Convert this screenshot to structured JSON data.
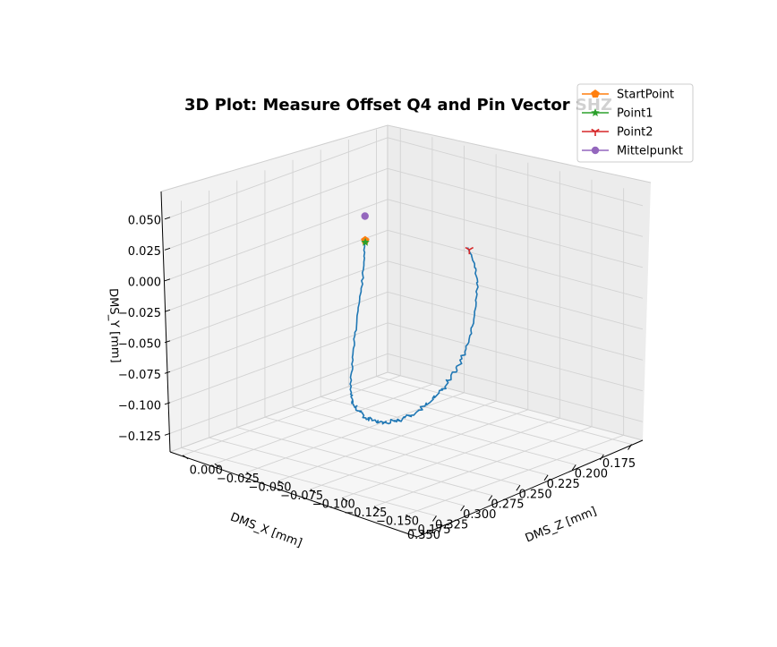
{
  "chart_data": {
    "type": "line",
    "projection": "3d",
    "title": "3D Plot: Measure Offset Q4 and Pin Vector SHZ",
    "xlabel": "DMS_X [mm]",
    "ylabel": "DMS_Y [mm]",
    "zlabel": "DMS_Z [mm]",
    "xlim": [
      0.165,
      0.36
    ],
    "ylim": [
      -0.14,
      0.06
    ],
    "zlim": [
      -0.19,
      0.01
    ],
    "x_ticks": [
      "0.175",
      "0.200",
      "0.225",
      "0.250",
      "0.275",
      "0.300",
      "0.325",
      "0.350"
    ],
    "y_ticks": [
      "−0.125",
      "−0.100",
      "−0.075",
      "−0.050",
      "−0.025",
      "0.000",
      "0.025",
      "0.050"
    ],
    "z_ticks": [
      "0.000",
      "−0.025",
      "−0.050",
      "−0.075",
      "−0.100",
      "−0.125",
      "−0.150",
      "−0.175"
    ],
    "x_tick_values": [
      0.175,
      0.2,
      0.225,
      0.25,
      0.275,
      0.3,
      0.325,
      0.35
    ],
    "y_tick_values": [
      -0.125,
      -0.1,
      -0.075,
      -0.05,
      -0.025,
      0.0,
      0.025,
      0.05
    ],
    "z_tick_values": [
      0.0,
      -0.025,
      -0.05,
      -0.075,
      -0.1,
      -0.125,
      -0.15,
      -0.175
    ],
    "grid": true,
    "legend_position": "top-right",
    "series": [
      {
        "name": "",
        "color": "#1f77b4",
        "marker": "none",
        "x": [
          0.2,
          0.202,
          0.206,
          0.211,
          0.217,
          0.224,
          0.231,
          0.239,
          0.247,
          0.255,
          0.262,
          0.268,
          0.274,
          0.28,
          0.286,
          0.291,
          0.296,
          0.3,
          0.304,
          0.307,
          0.309,
          0.311,
          0.312,
          0.312,
          0.311,
          0.31,
          0.308,
          0.306,
          0.303,
          0.3,
          0.296,
          0.292
        ],
        "y": [
          -0.018,
          -0.032,
          -0.048,
          -0.064,
          -0.08,
          -0.092,
          -0.103,
          -0.11,
          -0.116,
          -0.119,
          -0.121,
          -0.121,
          -0.119,
          -0.116,
          -0.112,
          -0.107,
          -0.101,
          -0.094,
          -0.086,
          -0.077,
          -0.067,
          -0.056,
          -0.045,
          -0.033,
          -0.021,
          -0.008,
          0.005,
          0.018,
          0.03,
          0.04,
          0.047,
          0.051
        ],
        "z": [
          -0.003,
          -0.004,
          -0.006,
          -0.008,
          -0.011,
          -0.015,
          -0.02,
          -0.026,
          -0.033,
          -0.041,
          -0.05,
          -0.06,
          -0.07,
          -0.081,
          -0.092,
          -0.103,
          -0.114,
          -0.125,
          -0.135,
          -0.145,
          -0.154,
          -0.162,
          -0.169,
          -0.175,
          -0.179,
          -0.182,
          -0.183,
          -0.183,
          -0.181,
          -0.177,
          -0.171,
          -0.164
        ]
      },
      {
        "name": "StartPoint",
        "color": "#ff7f0e",
        "marker": "pentagon",
        "x": [
          0.2
        ],
        "y": [
          -0.018
        ],
        "z": [
          -0.003
        ]
      },
      {
        "name": "Point1",
        "color": "#2ca02c",
        "marker": "star",
        "x": [
          0.201
        ],
        "y": [
          -0.019
        ],
        "z": [
          -0.004
        ]
      },
      {
        "name": "Point2",
        "color": "#d62728",
        "marker": "tri",
        "x": [
          0.293
        ],
        "y": [
          0.05
        ],
        "z": [
          -0.166
        ]
      },
      {
        "name": "Mittelpunkt",
        "color": "#9467bd",
        "marker": "circle",
        "x": [
          0.199
        ],
        "y": [
          0.001
        ],
        "z": [
          -0.002
        ]
      }
    ]
  }
}
